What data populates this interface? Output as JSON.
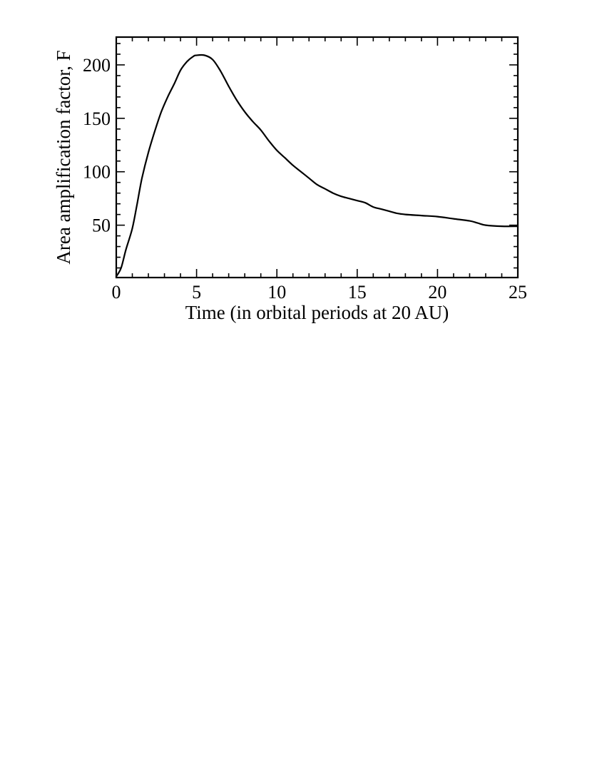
{
  "chart_data": {
    "type": "line",
    "xlabel": "Time (in orbital periods at 20 AU)",
    "ylabel": "Area amplification factor, F",
    "xlim": [
      0,
      25
    ],
    "ylim": [
      1,
      226
    ],
    "x_ticks": [
      {
        "value": 0,
        "label": "0"
      },
      {
        "value": 5,
        "label": "5"
      },
      {
        "value": 10,
        "label": "10"
      },
      {
        "value": 15,
        "label": "15"
      },
      {
        "value": 20,
        "label": "20"
      },
      {
        "value": 25,
        "label": "25"
      }
    ],
    "y_ticks": [
      {
        "value": 50,
        "label": "50"
      },
      {
        "value": 100,
        "label": "100"
      },
      {
        "value": 150,
        "label": "150"
      },
      {
        "value": 200,
        "label": "200"
      }
    ],
    "grid": false,
    "series": [
      {
        "color": "#000000",
        "points": [
          [
            0,
            2
          ],
          [
            0.3,
            10
          ],
          [
            0.6,
            27
          ],
          [
            1.0,
            47
          ],
          [
            1.3,
            70
          ],
          [
            1.6,
            94
          ],
          [
            2.0,
            118
          ],
          [
            2.4,
            138
          ],
          [
            2.8,
            156
          ],
          [
            3.2,
            170
          ],
          [
            3.6,
            182
          ],
          [
            4.0,
            195
          ],
          [
            4.4,
            203
          ],
          [
            4.8,
            208
          ],
          [
            5.0,
            209
          ],
          [
            5.5,
            209
          ],
          [
            6.0,
            205
          ],
          [
            6.5,
            194
          ],
          [
            7.0,
            180
          ],
          [
            7.5,
            167
          ],
          [
            8.0,
            156
          ],
          [
            8.5,
            147
          ],
          [
            9.0,
            139
          ],
          [
            9.5,
            129
          ],
          [
            10.0,
            120
          ],
          [
            10.5,
            113
          ],
          [
            11.0,
            106
          ],
          [
            11.5,
            100
          ],
          [
            12.0,
            94
          ],
          [
            12.5,
            88
          ],
          [
            13.0,
            84
          ],
          [
            13.5,
            80
          ],
          [
            14.0,
            77
          ],
          [
            14.5,
            75
          ],
          [
            15.0,
            73
          ],
          [
            15.5,
            71
          ],
          [
            16.0,
            67
          ],
          [
            16.5,
            65
          ],
          [
            17.0,
            63
          ],
          [
            17.5,
            61
          ],
          [
            18.0,
            60
          ],
          [
            19.0,
            59
          ],
          [
            20.0,
            58
          ],
          [
            21.0,
            56
          ],
          [
            22.0,
            54
          ],
          [
            22.5,
            52
          ],
          [
            23.0,
            50
          ],
          [
            24.0,
            49
          ],
          [
            25.0,
            49
          ]
        ]
      }
    ]
  }
}
